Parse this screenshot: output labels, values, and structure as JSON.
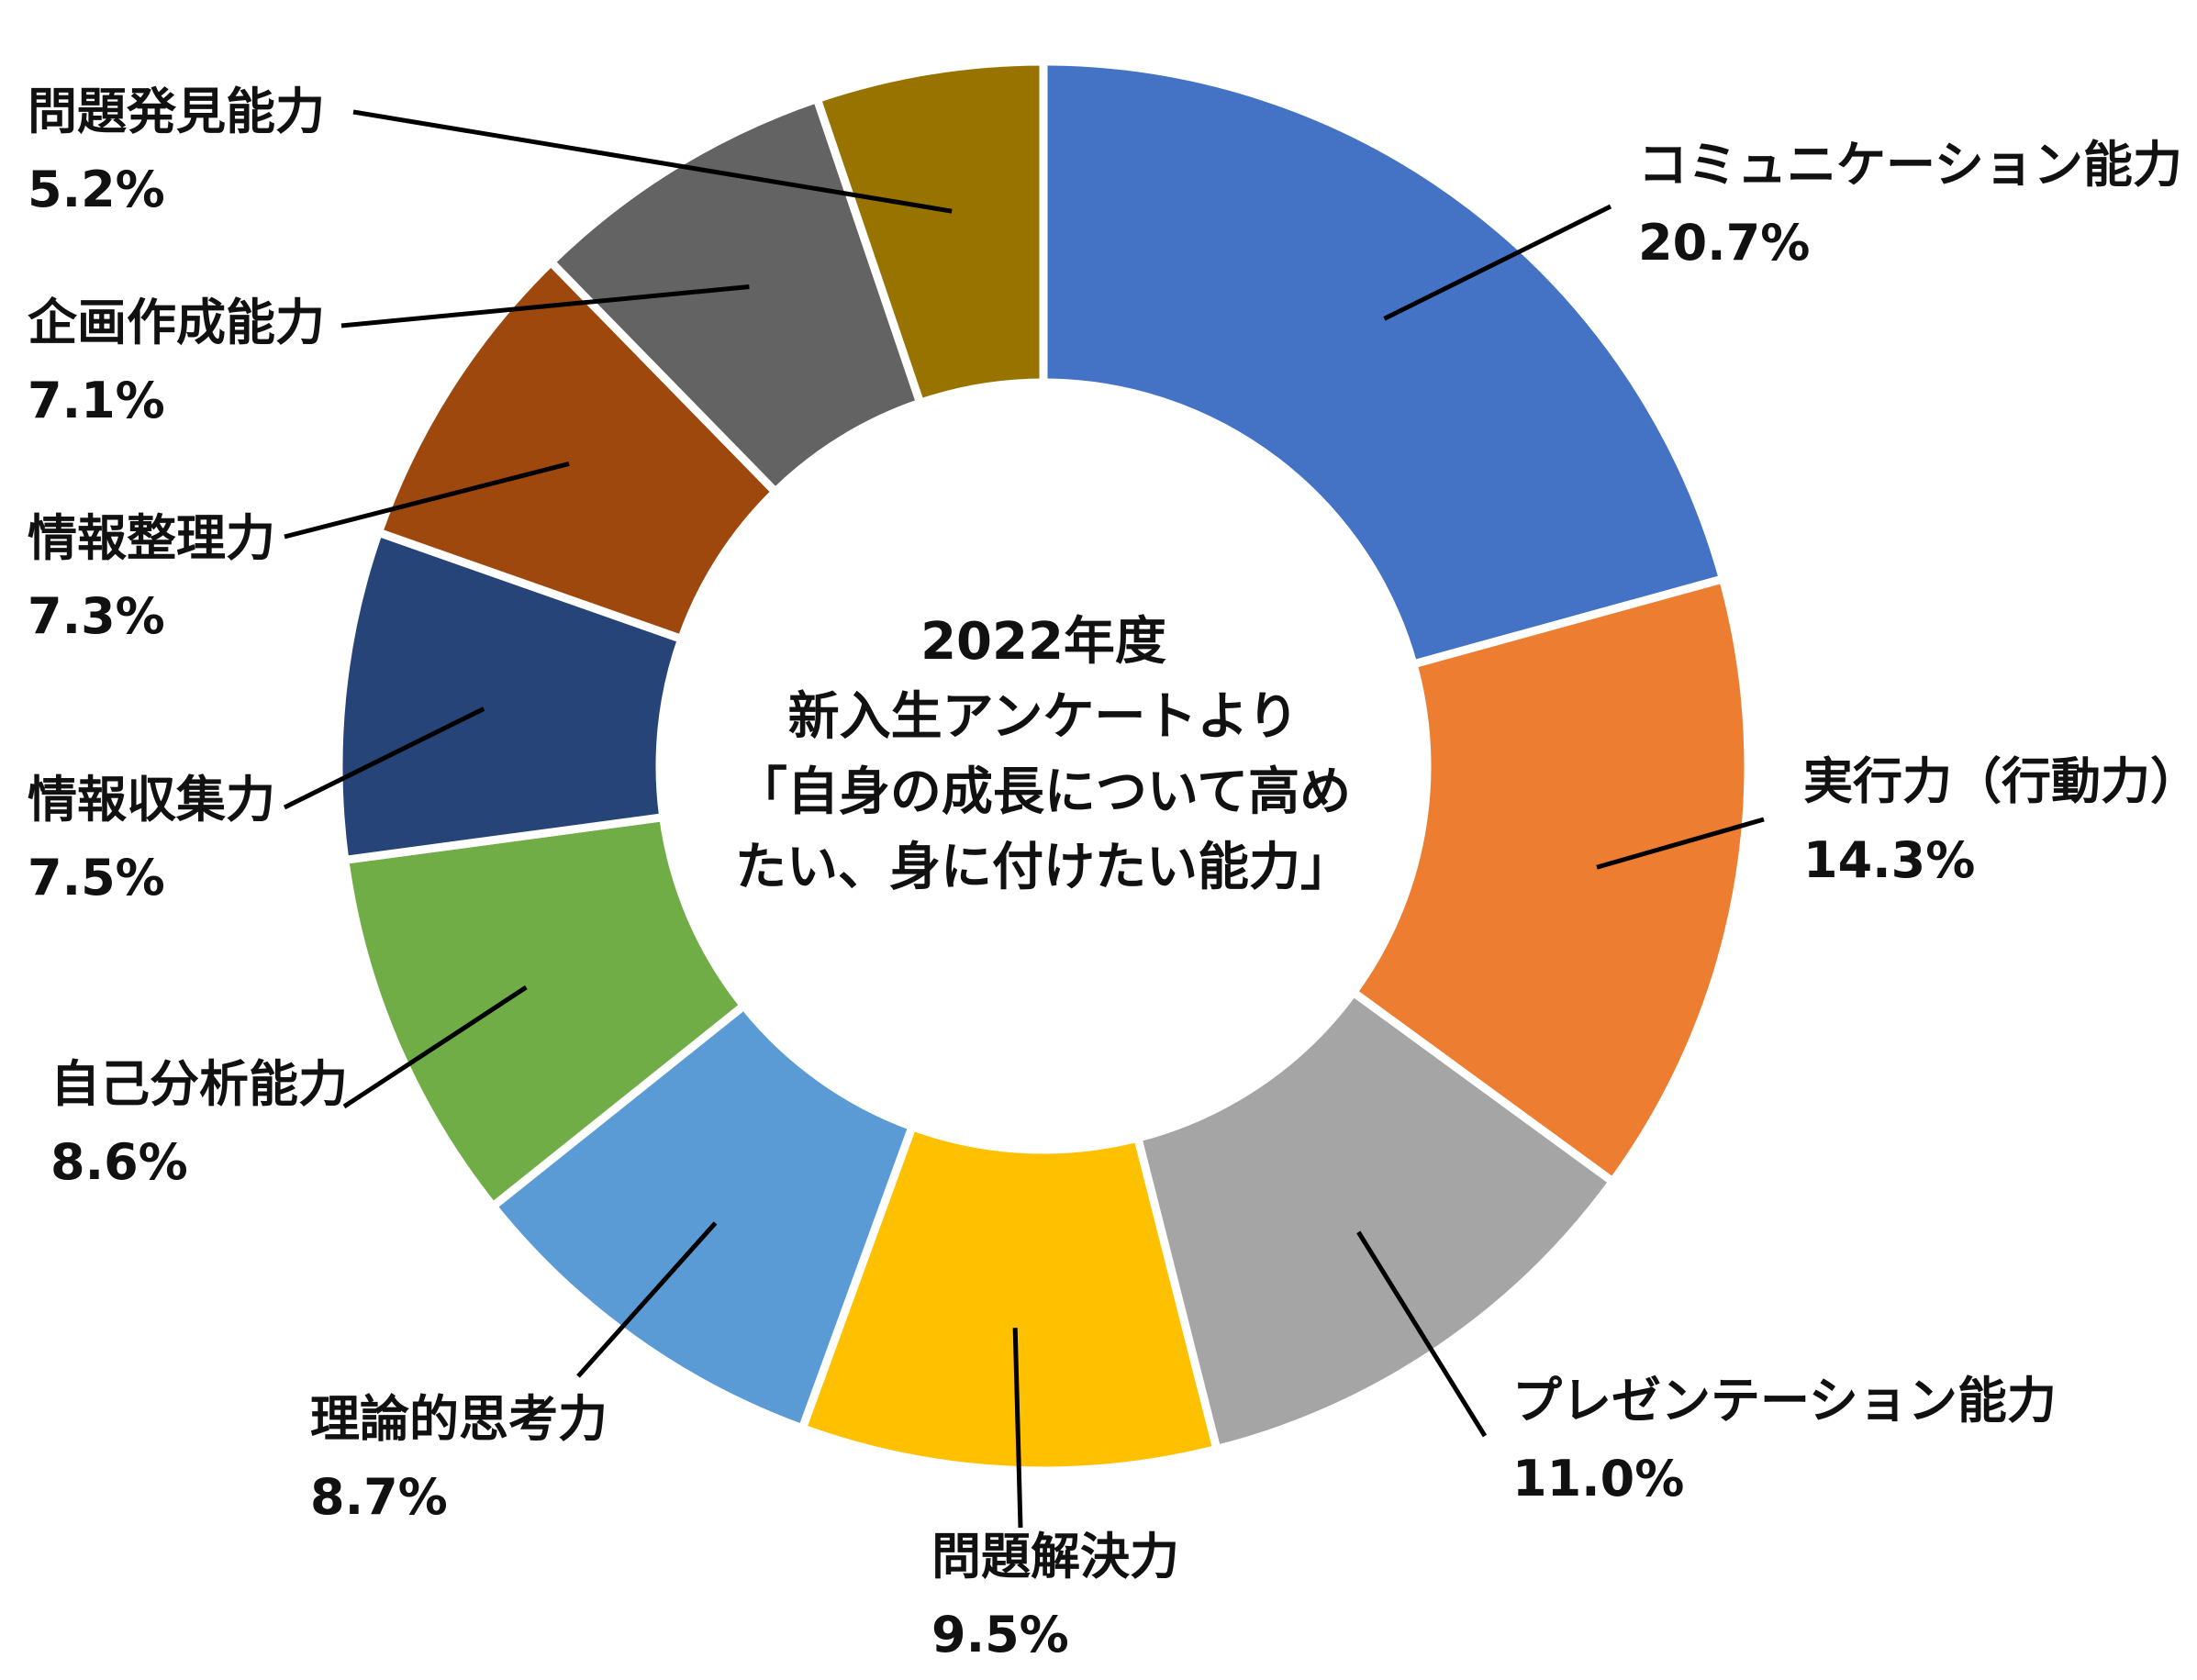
{
  "chart_data": {
    "type": "pie",
    "variant": "donut",
    "center_text": [
      "2022年度",
      "新入生アンケートより",
      "「自身の成長について高め",
      "たい、身に付けたい能力」"
    ],
    "categories": [
      "コミュニケーション能力",
      "実行力（行動力）",
      "プレゼンテーション能力",
      "問題解決力",
      "理論的思考力",
      "自己分析能力",
      "情報収集力",
      "情報整理力",
      "企画作成能力",
      "問題発見能力"
    ],
    "values": [
      20.7,
      14.3,
      11.0,
      9.5,
      8.7,
      8.6,
      7.5,
      7.3,
      7.1,
      5.2
    ],
    "value_labels": [
      "20.7%",
      "14.3%",
      "11.0%",
      "9.5%",
      "8.7%",
      "8.6%",
      "7.5%",
      "7.3%",
      "7.1%",
      "5.2%"
    ],
    "colors": [
      "#4472C4",
      "#ED7D31",
      "#A5A5A5",
      "#FFC000",
      "#5B9BD5",
      "#70AD47",
      "#264478",
      "#9E480E",
      "#636363",
      "#997300"
    ],
    "legend": "none",
    "start_angle": "12 o'clock",
    "direction": "clockwise"
  }
}
